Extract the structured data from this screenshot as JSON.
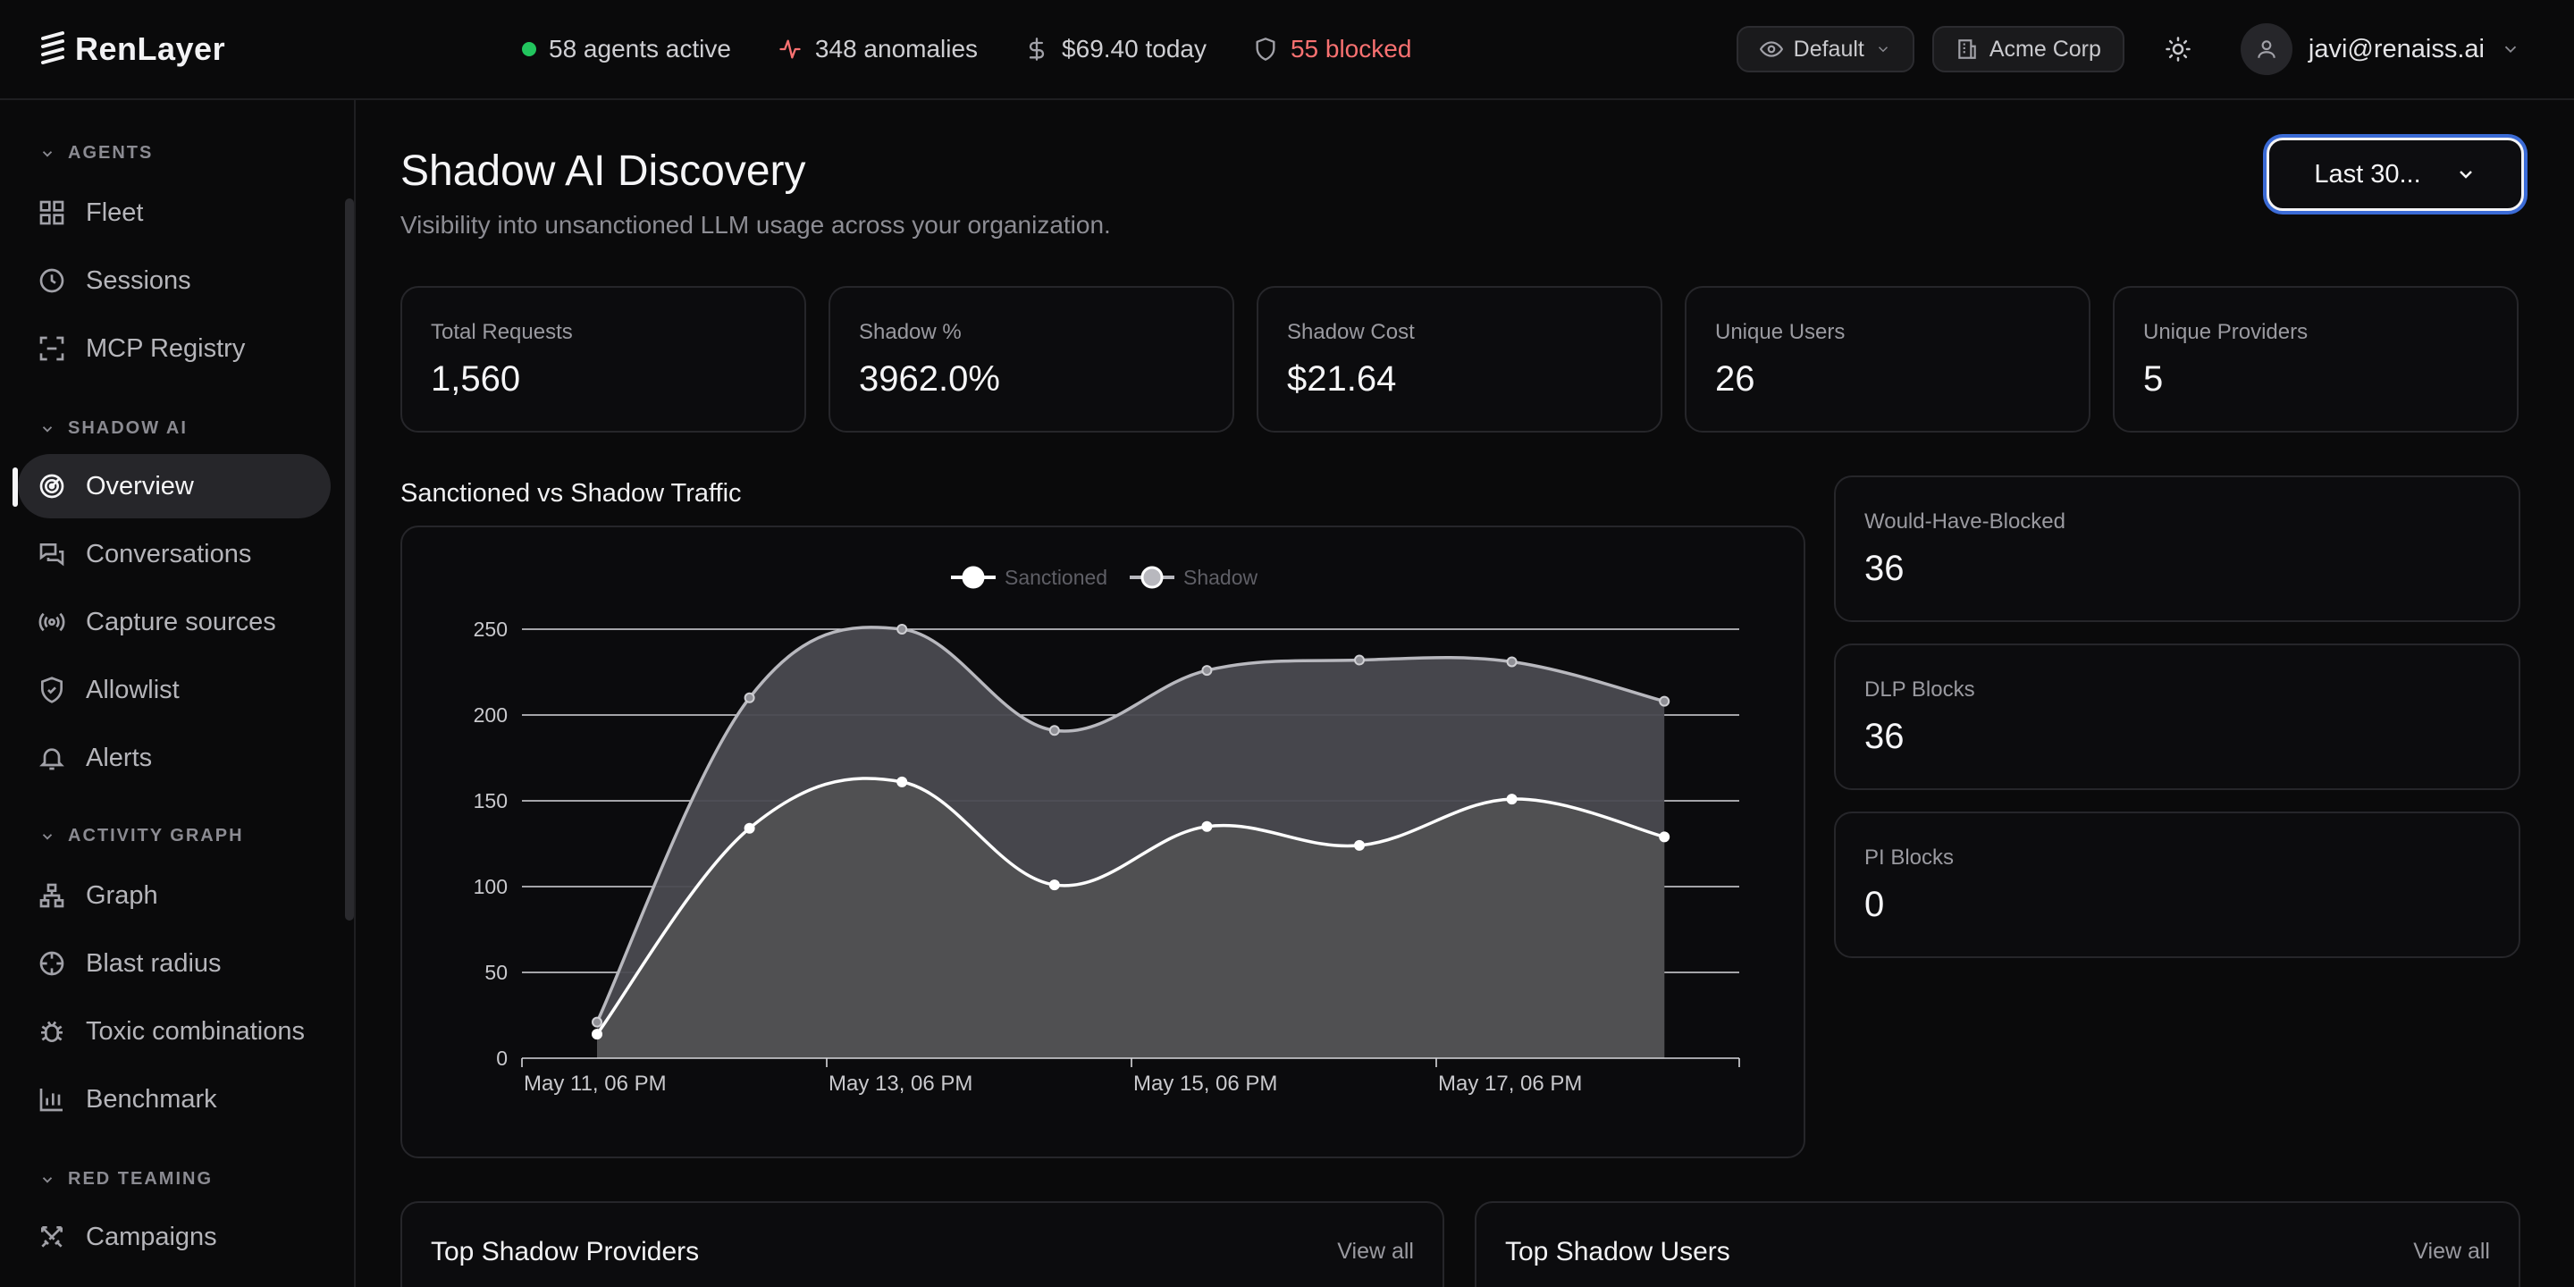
{
  "brand": {
    "name": "RenLayer"
  },
  "topbar": {
    "stats": {
      "agents": "58 agents active",
      "anomalies": "348 anomalies",
      "cost": "$69.40 today",
      "blocked": "55 blocked"
    },
    "view": "Default",
    "org": "Acme Corp",
    "user_email": "javi@renaiss.ai"
  },
  "sidebar": {
    "sections": {
      "agents": "AGENTS",
      "shadow_ai": "SHADOW AI",
      "activity_graph": "ACTIVITY GRAPH",
      "red_teaming": "RED TEAMING"
    },
    "items": {
      "fleet": "Fleet",
      "sessions": "Sessions",
      "mcp_registry": "MCP Registry",
      "overview": "Overview",
      "conversations": "Conversations",
      "capture_sources": "Capture sources",
      "allowlist": "Allowlist",
      "alerts": "Alerts",
      "graph": "Graph",
      "blast_radius": "Blast radius",
      "toxic_combinations": "Toxic combinations",
      "benchmark": "Benchmark",
      "campaigns": "Campaigns"
    }
  },
  "page": {
    "title": "Shadow AI Discovery",
    "subtitle": "Visibility into unsanctioned LLM usage across your organization.",
    "range": "Last 30..."
  },
  "kpis": [
    {
      "label": "Total Requests",
      "value": "1,560"
    },
    {
      "label": "Shadow %",
      "value": "3962.0%"
    },
    {
      "label": "Shadow Cost",
      "value": "$21.64"
    },
    {
      "label": "Unique Users",
      "value": "26"
    },
    {
      "label": "Unique Providers",
      "value": "5"
    }
  ],
  "side_cards": [
    {
      "label": "Would-Have-Blocked",
      "value": "36"
    },
    {
      "label": "DLP Blocks",
      "value": "36"
    },
    {
      "label": "PI Blocks",
      "value": "0"
    }
  ],
  "bottom": {
    "providers_title": "Top Shadow Providers",
    "users_title": "Top Shadow Users",
    "view_all": "View all"
  },
  "chart_data": {
    "type": "area",
    "title": "Sanctioned vs Shadow Traffic",
    "x": [
      "May 11, 06 PM",
      "May 12, 06 PM",
      "May 13, 06 PM",
      "May 14, 06 PM",
      "May 15, 06 PM",
      "May 16, 06 PM",
      "May 17, 06 PM",
      "May 18, 06 PM"
    ],
    "x_tick_labels": [
      "May 11, 06 PM",
      "May 13, 06 PM",
      "May 15, 06 PM",
      "May 17, 06 PM"
    ],
    "series": [
      {
        "name": "Sanctioned",
        "color": "#ffffff",
        "values": [
          14,
          134,
          161,
          101,
          135,
          124,
          151,
          129
        ]
      },
      {
        "name": "Shadow",
        "color": "#b8b8be",
        "values": [
          21,
          210,
          250,
          191,
          226,
          232,
          231,
          208
        ]
      }
    ],
    "ylim": [
      0,
      250
    ],
    "yticks": [
      0,
      50,
      100,
      150,
      200,
      250
    ],
    "grid": true,
    "legend": "top-center"
  }
}
